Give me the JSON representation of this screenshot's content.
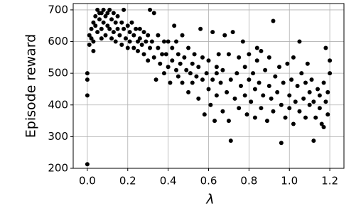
{
  "chart_data": {
    "type": "scatter",
    "x_label": "λ",
    "y_label": "Episode reward",
    "color": "#000000",
    "grid": true,
    "xlim": [
      -0.07,
      1.27
    ],
    "ylim": [
      200,
      720
    ],
    "xticks": [
      {
        "value": 0,
        "label": "0.0"
      },
      0.2,
      0.4,
      0.6,
      0.8,
      {
        "value": 1,
        "label": "1.0"
      },
      1.2
    ],
    "yticks": [
      200,
      300,
      400,
      500,
      600,
      700
    ],
    "x": [
      0,
      0,
      0,
      0,
      0.01,
      0.01,
      0.02,
      0.02,
      0.03,
      0.03,
      0.03,
      0.04,
      0.04,
      0.05,
      0.05,
      0.06,
      0.06,
      0.07,
      0.07,
      0.08,
      0.08,
      0.09,
      0.09,
      0.1,
      0.1,
      0.11,
      0.11,
      0.12,
      0.12,
      0.13,
      0.13,
      0.14,
      0.14,
      0.15,
      0.15,
      0.16,
      0.17,
      0.17,
      0.18,
      0.18,
      0.19,
      0.2,
      0.2,
      0.21,
      0.21,
      0.22,
      0.23,
      0.23,
      0.24,
      0.25,
      0.25,
      0.26,
      0.26,
      0.27,
      0.28,
      0.28,
      0.29,
      0.3,
      0.3,
      0.31,
      0.31,
      0.32,
      0.33,
      0.33,
      0.34,
      0.35,
      0.35,
      0.36,
      0.37,
      0.38,
      0.38,
      0.39,
      0.4,
      0.4,
      0.41,
      0.42,
      0.42,
      0.43,
      0.44,
      0.45,
      0.45,
      0.46,
      0.47,
      0.47,
      0.48,
      0.49,
      0.5,
      0.5,
      0.51,
      0.52,
      0.52,
      0.53,
      0.54,
      0.55,
      0.55,
      0.56,
      0.57,
      0.57,
      0.58,
      0.59,
      0.6,
      0.6,
      0.61,
      0.62,
      0.62,
      0.63,
      0.64,
      0.64,
      0.65,
      0.66,
      0.67,
      0.67,
      0.68,
      0.69,
      0.7,
      0.7,
      0.71,
      0.71,
      0.72,
      0.73,
      0.74,
      0.75,
      0.75,
      0.76,
      0.77,
      0.78,
      0.78,
      0.79,
      0.8,
      0.8,
      0.81,
      0.82,
      0.83,
      0.83,
      0.84,
      0.85,
      0.86,
      0.86,
      0.87,
      0.88,
      0.89,
      0.9,
      0.9,
      0.91,
      0.92,
      0.92,
      0.93,
      0.94,
      0.95,
      0.96,
      0.96,
      0.97,
      0.98,
      0.99,
      1,
      1,
      1.01,
      1.02,
      1.02,
      1.03,
      1.04,
      1.05,
      1.05,
      1.06,
      1.07,
      1.08,
      1.08,
      1.09,
      1.1,
      1.1,
      1.11,
      1.12,
      1.12,
      1.13,
      1.14,
      1.15,
      1.15,
      1.16,
      1.17,
      1.17,
      1.18,
      1.18,
      1.19,
      1.19,
      1.2,
      1.2,
      0.07,
      0.44,
      0.64,
      0.84
    ],
    "values": [
      213,
      430,
      500,
      480,
      590,
      620,
      610,
      640,
      660,
      600,
      570,
      680,
      650,
      700,
      630,
      690,
      670,
      640,
      610,
      700,
      660,
      680,
      620,
      690,
      650,
      700,
      640,
      670,
      610,
      690,
      630,
      660,
      600,
      680,
      640,
      620,
      660,
      590,
      640,
      700,
      610,
      650,
      580,
      630,
      600,
      660,
      620,
      580,
      640,
      600,
      570,
      640,
      610,
      590,
      630,
      560,
      600,
      620,
      540,
      580,
      700,
      600,
      550,
      690,
      480,
      620,
      580,
      530,
      560,
      600,
      500,
      560,
      520,
      600,
      470,
      580,
      540,
      650,
      510,
      560,
      490,
      530,
      620,
      470,
      550,
      510,
      580,
      440,
      500,
      530,
      470,
      560,
      490,
      520,
      420,
      640,
      480,
      550,
      370,
      500,
      450,
      540,
      400,
      630,
      480,
      350,
      520,
      430,
      560,
      470,
      380,
      510,
      620,
      440,
      560,
      350,
      287,
      480,
      630,
      420,
      500,
      390,
      550,
      460,
      600,
      430,
      520,
      370,
      480,
      560,
      410,
      500,
      360,
      450,
      540,
      470,
      390,
      570,
      430,
      510,
      350,
      460,
      550,
      420,
      665,
      380,
      490,
      440,
      520,
      280,
      400,
      470,
      360,
      530,
      430,
      390,
      480,
      340,
      550,
      410,
      460,
      380,
      600,
      500,
      420,
      360,
      470,
      530,
      400,
      440,
      480,
      287,
      410,
      360,
      450,
      390,
      430,
      340,
      470,
      330,
      410,
      580,
      440,
      370,
      500,
      540,
      690,
      600,
      500,
      580
    ]
  }
}
